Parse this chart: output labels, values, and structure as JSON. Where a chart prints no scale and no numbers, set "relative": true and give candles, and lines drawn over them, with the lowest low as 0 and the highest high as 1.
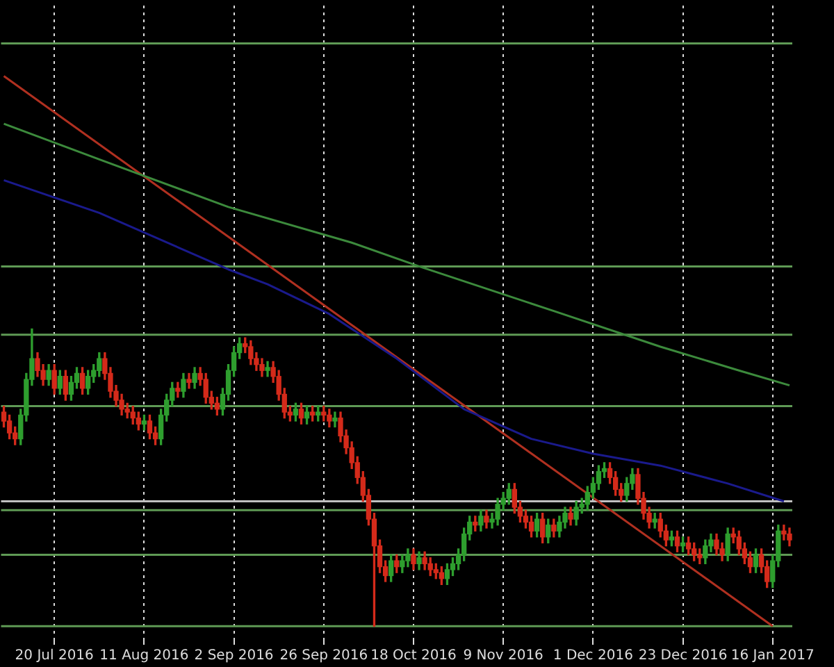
{
  "chart_data": {
    "type": "candlestick",
    "relative": true,
    "tick_labels": "x",
    "grid": "x",
    "categories": [
      null,
      null,
      null,
      null,
      null,
      null,
      null,
      null,
      null,
      "20 Jul 2016",
      null,
      null,
      null,
      null,
      null,
      null,
      null,
      null,
      null,
      null,
      null,
      null,
      null,
      null,
      null,
      "11 Aug 2016",
      null,
      null,
      null,
      null,
      null,
      null,
      null,
      null,
      null,
      null,
      null,
      null,
      null,
      null,
      null,
      "2 Sep 2016",
      null,
      null,
      null,
      null,
      null,
      null,
      null,
      null,
      null,
      null,
      null,
      null,
      null,
      null,
      null,
      "26 Sep 2016",
      null,
      null,
      null,
      null,
      null,
      null,
      null,
      null,
      null,
      null,
      null,
      null,
      null,
      null,
      null,
      "18 Oct 2016",
      null,
      null,
      null,
      null,
      null,
      null,
      null,
      null,
      null,
      null,
      null,
      null,
      null,
      null,
      null,
      "9 Nov 2016",
      null,
      null,
      null,
      null,
      null,
      null,
      null,
      null,
      null,
      null,
      null,
      null,
      null,
      null,
      null,
      "1 Dec 2016",
      null,
      null,
      null,
      null,
      null,
      null,
      null,
      null,
      null,
      null,
      null,
      null,
      null,
      null,
      null,
      "23 Dec 2016",
      null,
      null,
      null,
      null,
      null,
      null,
      null,
      null,
      null,
      null,
      null,
      null,
      null,
      null,
      null,
      "16 Jan 2017",
      null,
      null,
      null
    ],
    "ohlc": [
      [
        0.72,
        0.74,
        0.67,
        0.69
      ],
      [
        0.69,
        0.71,
        0.63,
        0.65
      ],
      [
        0.65,
        0.67,
        0.61,
        0.63
      ],
      [
        0.63,
        0.73,
        0.61,
        0.71
      ],
      [
        0.71,
        0.85,
        0.69,
        0.83
      ],
      [
        0.83,
        1,
        0.81,
        0.9
      ],
      [
        0.9,
        0.92,
        0.84,
        0.86
      ],
      [
        0.86,
        0.88,
        0.81,
        0.83
      ],
      [
        0.83,
        0.88,
        0.81,
        0.86
      ],
      [
        0.86,
        0.88,
        0.78,
        0.8
      ],
      [
        0.8,
        0.86,
        0.78,
        0.84
      ],
      [
        0.84,
        0.86,
        0.76,
        0.78
      ],
      [
        0.78,
        0.84,
        0.76,
        0.82
      ],
      [
        0.82,
        0.87,
        0.8,
        0.85
      ],
      [
        0.85,
        0.87,
        0.78,
        0.8
      ],
      [
        0.8,
        0.86,
        0.78,
        0.84
      ],
      [
        0.84,
        0.88,
        0.82,
        0.86
      ],
      [
        0.86,
        0.92,
        0.84,
        0.9
      ],
      [
        0.9,
        0.92,
        0.83,
        0.85
      ],
      [
        0.85,
        0.87,
        0.77,
        0.79
      ],
      [
        0.79,
        0.81,
        0.74,
        0.76
      ],
      [
        0.76,
        0.78,
        0.71,
        0.73
      ],
      [
        0.73,
        0.75,
        0.7,
        0.72
      ],
      [
        0.72,
        0.74,
        0.68,
        0.7
      ],
      [
        0.7,
        0.72,
        0.66,
        0.68
      ],
      [
        0.68,
        0.71,
        0.66,
        0.69
      ],
      [
        0.69,
        0.71,
        0.63,
        0.65
      ],
      [
        0.65,
        0.67,
        0.61,
        0.63
      ],
      [
        0.63,
        0.73,
        0.61,
        0.71
      ],
      [
        0.71,
        0.78,
        0.69,
        0.76
      ],
      [
        0.76,
        0.82,
        0.74,
        0.8
      ],
      [
        0.8,
        0.82,
        0.77,
        0.79
      ],
      [
        0.79,
        0.85,
        0.77,
        0.83
      ],
      [
        0.83,
        0.85,
        0.8,
        0.82
      ],
      [
        0.82,
        0.87,
        0.8,
        0.85
      ],
      [
        0.85,
        0.87,
        0.81,
        0.83
      ],
      [
        0.83,
        0.85,
        0.75,
        0.77
      ],
      [
        0.77,
        0.79,
        0.73,
        0.75
      ],
      [
        0.75,
        0.77,
        0.71,
        0.73
      ],
      [
        0.73,
        0.8,
        0.71,
        0.78
      ],
      [
        0.78,
        0.88,
        0.76,
        0.86
      ],
      [
        0.86,
        0.94,
        0.84,
        0.92
      ],
      [
        0.92,
        0.97,
        0.9,
        0.95
      ],
      [
        0.95,
        0.97,
        0.92,
        0.94
      ],
      [
        0.94,
        0.96,
        0.88,
        0.9
      ],
      [
        0.9,
        0.92,
        0.86,
        0.88
      ],
      [
        0.88,
        0.9,
        0.84,
        0.86
      ],
      [
        0.86,
        0.89,
        0.84,
        0.87
      ],
      [
        0.87,
        0.89,
        0.82,
        0.84
      ],
      [
        0.84,
        0.86,
        0.76,
        0.78
      ],
      [
        0.78,
        0.8,
        0.7,
        0.72
      ],
      [
        0.72,
        0.74,
        0.69,
        0.71
      ],
      [
        0.71,
        0.75,
        0.69,
        0.73
      ],
      [
        0.73,
        0.75,
        0.68,
        0.7
      ],
      [
        0.7,
        0.74,
        0.68,
        0.72
      ],
      [
        0.72,
        0.74,
        0.69,
        0.71
      ],
      [
        0.71,
        0.74,
        0.69,
        0.72
      ],
      [
        0.72,
        0.74,
        0.69,
        0.71
      ],
      [
        0.71,
        0.73,
        0.67,
        0.69
      ],
      [
        0.69,
        0.72,
        0.67,
        0.7
      ],
      [
        0.7,
        0.72,
        0.62,
        0.64
      ],
      [
        0.64,
        0.66,
        0.58,
        0.6
      ],
      [
        0.6,
        0.62,
        0.53,
        0.55
      ],
      [
        0.55,
        0.57,
        0.48,
        0.5
      ],
      [
        0.5,
        0.52,
        0.42,
        0.44
      ],
      [
        0.44,
        0.46,
        0.34,
        0.36
      ],
      [
        0.36,
        0.38,
        0,
        0.27
      ],
      [
        0.27,
        0.29,
        0.18,
        0.2
      ],
      [
        0.2,
        0.22,
        0.15,
        0.17
      ],
      [
        0.17,
        0.24,
        0.15,
        0.22
      ],
      [
        0.22,
        0.24,
        0.18,
        0.2
      ],
      [
        0.2,
        0.24,
        0.18,
        0.22
      ],
      [
        0.22,
        0.26,
        0.2,
        0.24
      ],
      [
        0.24,
        0.26,
        0.19,
        0.21
      ],
      [
        0.21,
        0.25,
        0.19,
        0.23
      ],
      [
        0.23,
        0.25,
        0.19,
        0.21
      ],
      [
        0.21,
        0.23,
        0.17,
        0.19
      ],
      [
        0.19,
        0.21,
        0.16,
        0.18
      ],
      [
        0.18,
        0.2,
        0.14,
        0.16
      ],
      [
        0.16,
        0.21,
        0.14,
        0.19
      ],
      [
        0.19,
        0.23,
        0.17,
        0.21
      ],
      [
        0.21,
        0.26,
        0.19,
        0.24
      ],
      [
        0.24,
        0.33,
        0.22,
        0.31
      ],
      [
        0.31,
        0.37,
        0.29,
        0.35
      ],
      [
        0.35,
        0.37,
        0.32,
        0.34
      ],
      [
        0.34,
        0.39,
        0.32,
        0.37
      ],
      [
        0.37,
        0.39,
        0.33,
        0.35
      ],
      [
        0.35,
        0.38,
        0.33,
        0.36
      ],
      [
        0.36,
        0.43,
        0.34,
        0.41
      ],
      [
        0.41,
        0.45,
        0.39,
        0.43
      ],
      [
        0.43,
        0.48,
        0.41,
        0.46
      ],
      [
        0.46,
        0.48,
        0.38,
        0.4
      ],
      [
        0.4,
        0.42,
        0.35,
        0.37
      ],
      [
        0.37,
        0.39,
        0.33,
        0.35
      ],
      [
        0.35,
        0.37,
        0.3,
        0.32
      ],
      [
        0.32,
        0.38,
        0.3,
        0.36
      ],
      [
        0.36,
        0.38,
        0.28,
        0.3
      ],
      [
        0.3,
        0.36,
        0.28,
        0.34
      ],
      [
        0.34,
        0.36,
        0.3,
        0.32
      ],
      [
        0.32,
        0.37,
        0.3,
        0.35
      ],
      [
        0.35,
        0.4,
        0.33,
        0.38
      ],
      [
        0.38,
        0.4,
        0.34,
        0.36
      ],
      [
        0.36,
        0.42,
        0.34,
        0.4
      ],
      [
        0.4,
        0.43,
        0.38,
        0.41
      ],
      [
        0.41,
        0.47,
        0.39,
        0.45
      ],
      [
        0.45,
        0.5,
        0.43,
        0.48
      ],
      [
        0.48,
        0.54,
        0.46,
        0.52
      ],
      [
        0.52,
        0.55,
        0.5,
        0.53
      ],
      [
        0.53,
        0.55,
        0.48,
        0.5
      ],
      [
        0.5,
        0.52,
        0.44,
        0.46
      ],
      [
        0.46,
        0.48,
        0.42,
        0.44
      ],
      [
        0.44,
        0.5,
        0.42,
        0.48
      ],
      [
        0.48,
        0.53,
        0.46,
        0.51
      ],
      [
        0.51,
        0.53,
        0.41,
        0.43
      ],
      [
        0.43,
        0.45,
        0.36,
        0.38
      ],
      [
        0.38,
        0.4,
        0.33,
        0.35
      ],
      [
        0.35,
        0.38,
        0.33,
        0.36
      ],
      [
        0.36,
        0.38,
        0.3,
        0.32
      ],
      [
        0.32,
        0.34,
        0.27,
        0.29
      ],
      [
        0.29,
        0.32,
        0.27,
        0.3
      ],
      [
        0.3,
        0.32,
        0.25,
        0.27
      ],
      [
        0.27,
        0.3,
        0.25,
        0.28
      ],
      [
        0.28,
        0.3,
        0.24,
        0.26
      ],
      [
        0.26,
        0.28,
        0.22,
        0.24
      ],
      [
        0.24,
        0.26,
        0.21,
        0.23
      ],
      [
        0.23,
        0.29,
        0.21,
        0.27
      ],
      [
        0.27,
        0.31,
        0.25,
        0.29
      ],
      [
        0.29,
        0.31,
        0.24,
        0.26
      ],
      [
        0.26,
        0.28,
        0.22,
        0.24
      ],
      [
        0.24,
        0.33,
        0.22,
        0.31
      ],
      [
        0.31,
        0.33,
        0.28,
        0.3
      ],
      [
        0.3,
        0.32,
        0.24,
        0.26
      ],
      [
        0.26,
        0.28,
        0.21,
        0.23
      ],
      [
        0.23,
        0.25,
        0.18,
        0.2
      ],
      [
        0.2,
        0.26,
        0.18,
        0.24
      ],
      [
        0.24,
        0.26,
        0.18,
        0.2
      ],
      [
        0.2,
        0.22,
        0.13,
        0.15
      ],
      [
        0.15,
        0.24,
        0.13,
        0.22
      ],
      [
        0.22,
        0.34,
        0.2,
        0.32
      ],
      [
        0.32,
        0.34,
        0.29,
        0.31
      ],
      [
        0.31,
        0.33,
        0.27,
        0.29
      ]
    ],
    "colors": [
      "#d42a1a",
      "#d42a1a",
      "#d42a1a",
      "#2e9e2e",
      "#2e9e2e",
      "#2e9e2e",
      "#d42a1a",
      "#d42a1a",
      "#2e9e2e",
      "#d42a1a",
      "#2e9e2e",
      "#d42a1a",
      "#2e9e2e",
      "#2e9e2e",
      "#d42a1a",
      "#2e9e2e",
      "#2e9e2e",
      "#2e9e2e",
      "#d42a1a",
      "#d42a1a",
      "#d42a1a",
      "#d42a1a",
      "#d42a1a",
      "#d42a1a",
      "#d42a1a",
      "#2e9e2e",
      "#d42a1a",
      "#d42a1a",
      "#2e9e2e",
      "#2e9e2e",
      "#2e9e2e",
      "#d42a1a",
      "#2e9e2e",
      "#d42a1a",
      "#2e9e2e",
      "#d42a1a",
      "#d42a1a",
      "#d42a1a",
      "#d42a1a",
      "#2e9e2e",
      "#2e9e2e",
      "#2e9e2e",
      "#2e9e2e",
      "#d42a1a",
      "#d42a1a",
      "#d42a1a",
      "#d42a1a",
      "#2e9e2e",
      "#d42a1a",
      "#d42a1a",
      "#d42a1a",
      "#d42a1a",
      "#2e9e2e",
      "#d42a1a",
      "#2e9e2e",
      "#d42a1a",
      "#2e9e2e",
      "#d42a1a",
      "#d42a1a",
      "#2e9e2e",
      "#d42a1a",
      "#d42a1a",
      "#d42a1a",
      "#d42a1a",
      "#d42a1a",
      "#d42a1a",
      "#d42a1a",
      "#d42a1a",
      "#d42a1a",
      "#2e9e2e",
      "#d42a1a",
      "#2e9e2e",
      "#2e9e2e",
      "#d42a1a",
      "#2e9e2e",
      "#d42a1a",
      "#d42a1a",
      "#d42a1a",
      "#d42a1a",
      "#2e9e2e",
      "#2e9e2e",
      "#2e9e2e",
      "#2e9e2e",
      "#2e9e2e",
      "#d42a1a",
      "#2e9e2e",
      "#d42a1a",
      "#2e9e2e",
      "#2e9e2e",
      "#2e9e2e",
      "#2e9e2e",
      "#d42a1a",
      "#d42a1a",
      "#d42a1a",
      "#d42a1a",
      "#2e9e2e",
      "#d42a1a",
      "#2e9e2e",
      "#d42a1a",
      "#2e9e2e",
      "#2e9e2e",
      "#d42a1a",
      "#2e9e2e",
      "#2e9e2e",
      "#2e9e2e",
      "#2e9e2e",
      "#2e9e2e",
      "#2e9e2e",
      "#d42a1a",
      "#d42a1a",
      "#d42a1a",
      "#2e9e2e",
      "#2e9e2e",
      "#d42a1a",
      "#d42a1a",
      "#d42a1a",
      "#2e9e2e",
      "#d42a1a",
      "#d42a1a",
      "#2e9e2e",
      "#d42a1a",
      "#2e9e2e",
      "#d42a1a",
      "#d42a1a",
      "#d42a1a",
      "#2e9e2e",
      "#2e9e2e",
      "#d42a1a",
      "#d42a1a",
      "#2e9e2e",
      "#d42a1a",
      "#d42a1a",
      "#d42a1a",
      "#d42a1a",
      "#2e9e2e",
      "#d42a1a",
      "#d42a1a",
      "#2e9e2e",
      "#2e9e2e",
      "#d42a1a",
      "#d42a1a"
    ],
    "series": [
      {
        "type": "line",
        "color": "#3c8a3c",
        "values": [
          1.69,
          null,
          null,
          null,
          null,
          null,
          null,
          null,
          null,
          null,
          null,
          null,
          null,
          null,
          null,
          null,
          null,
          1.57,
          null,
          null,
          null,
          null,
          null,
          null,
          null,
          null,
          null,
          null,
          null,
          null,
          null,
          null,
          null,
          null,
          null,
          null,
          null,
          null,
          null,
          null,
          1.41,
          null,
          null,
          null,
          null,
          null,
          null,
          null,
          null,
          null,
          null,
          null,
          null,
          null,
          null,
          null,
          null,
          null,
          null,
          null,
          null,
          null,
          1.29,
          null,
          null,
          null,
          null,
          null,
          null,
          null,
          null,
          null,
          null,
          null,
          1.21,
          null,
          null,
          null,
          null,
          null,
          null,
          null,
          null,
          null,
          null,
          null,
          null,
          null,
          null,
          null,
          null,
          null,
          null,
          null,
          null,
          null,
          null,
          null,
          1.06,
          null,
          null,
          null,
          null,
          null,
          null,
          null,
          null,
          null,
          null,
          null,
          null,
          null,
          null,
          null,
          null,
          null,
          null,
          0.94,
          null,
          null,
          null,
          null,
          null,
          null,
          null,
          null,
          null,
          null,
          null,
          null,
          null,
          0.86,
          null,
          null,
          null,
          null,
          null,
          null,
          null,
          null,
          0.81
        ]
      },
      {
        "type": "line",
        "color": "#1a1a8c",
        "values": [
          1.5,
          null,
          null,
          null,
          null,
          null,
          null,
          null,
          null,
          null,
          null,
          null,
          null,
          null,
          null,
          null,
          null,
          1.39,
          null,
          null,
          null,
          null,
          null,
          null,
          null,
          null,
          null,
          null,
          null,
          null,
          null,
          null,
          null,
          null,
          null,
          null,
          null,
          null,
          null,
          null,
          1.2,
          null,
          null,
          null,
          null,
          null,
          null,
          1.15,
          null,
          null,
          null,
          null,
          null,
          null,
          null,
          null,
          null,
          null,
          1.05,
          null,
          null,
          null,
          null,
          null,
          null,
          null,
          null,
          null,
          null,
          null,
          0.9,
          null,
          null,
          null,
          null,
          null,
          null,
          null,
          null,
          null,
          null,
          null,
          0.73,
          null,
          null,
          null,
          null,
          null,
          null,
          null,
          null,
          null,
          null,
          null,
          0.63,
          null,
          null,
          null,
          null,
          null,
          null,
          null,
          null,
          null,
          null,
          0.58,
          null,
          null,
          null,
          null,
          null,
          null,
          null,
          null,
          null,
          null,
          null,
          0.54,
          null,
          null,
          null,
          null,
          null,
          null,
          null,
          null,
          null,
          null,
          null,
          0.48,
          null,
          null,
          null,
          null,
          null,
          null,
          null,
          null,
          null,
          0.42,
          null
        ]
      },
      {
        "type": "line",
        "color": "#b03020",
        "values": [
          1.85,
          null,
          null,
          null,
          null,
          null,
          null,
          null,
          null,
          null,
          null,
          null,
          null,
          null,
          null,
          null,
          null,
          null,
          null,
          null,
          null,
          null,
          null,
          null,
          null,
          null,
          null,
          null,
          null,
          null,
          null,
          null,
          null,
          null,
          null,
          null,
          null,
          null,
          null,
          null,
          null,
          null,
          null,
          null,
          null,
          null,
          null,
          null,
          null,
          null,
          null,
          null,
          null,
          null,
          null,
          null,
          null,
          null,
          null,
          null,
          null,
          null,
          null,
          null,
          null,
          null,
          null,
          null,
          null,
          null,
          null,
          null,
          null,
          null,
          null,
          null,
          null,
          null,
          null,
          null,
          null,
          null,
          null,
          null,
          null,
          null,
          null,
          null,
          null,
          null,
          null,
          null,
          null,
          null,
          null,
          null,
          null,
          null,
          null,
          null,
          null,
          null,
          null,
          null,
          null,
          null,
          null,
          null,
          null,
          null,
          null,
          null,
          null,
          null,
          null,
          null,
          null,
          null,
          null,
          null,
          null,
          null,
          null,
          null,
          null,
          null,
          null,
          null,
          null,
          null,
          null,
          null,
          null,
          null,
          null,
          null,
          null,
          0,
          null,
          null,
          null
        ]
      }
    ],
    "ref_lines": [
      {
        "axis": "y",
        "value": 1.96,
        "color": "#5f9a55"
      },
      {
        "axis": "y",
        "value": 1.21,
        "color": "#5f9a55"
      },
      {
        "axis": "y",
        "value": 0.98,
        "color": "#5f9a55"
      },
      {
        "axis": "y",
        "value": 0.74,
        "color": "#5f9a55"
      },
      {
        "axis": "y",
        "value": 0.42,
        "color": "#c0c0c0"
      },
      {
        "axis": "y",
        "value": 0.39,
        "color": "#5f9a55"
      },
      {
        "axis": "y",
        "value": 0.24,
        "color": "#5f9a55"
      },
      {
        "axis": "y",
        "value": 0,
        "color": "#5f9a55"
      }
    ]
  }
}
